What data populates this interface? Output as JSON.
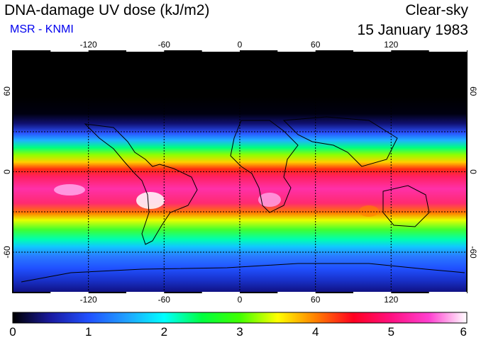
{
  "header": {
    "title": "DNA-damage UV dose (kJ/m2)",
    "source": "MSR - KNMI",
    "condition": "Clear-sky",
    "date": "15 January 1983"
  },
  "map": {
    "projection": "equirectangular",
    "lon_range": [
      -180,
      180
    ],
    "lat_range": [
      -90,
      90
    ],
    "lon_ticks": [
      "-120",
      "-60",
      "0",
      "60",
      "120"
    ],
    "lat_ticks": [
      "60",
      "0",
      "-60"
    ],
    "gridline_style": "dotted",
    "colors": {
      "night": "#000000",
      "grid": "#000000",
      "coast": "#000000"
    }
  },
  "colorbar": {
    "tick_labels": [
      "0",
      "1",
      "2",
      "3",
      "4",
      "5",
      "6"
    ],
    "min": 0,
    "max": 6,
    "stops": [
      {
        "value": 0,
        "color": "#000000"
      },
      {
        "value": 0.5,
        "color": "#1a1aa0"
      },
      {
        "value": 1,
        "color": "#2050ff"
      },
      {
        "value": 1.5,
        "color": "#20a0ff"
      },
      {
        "value": 2,
        "color": "#00ffff"
      },
      {
        "value": 2.5,
        "color": "#00ff40"
      },
      {
        "value": 3,
        "color": "#40ff00"
      },
      {
        "value": 3.5,
        "color": "#ffff00"
      },
      {
        "value": 4,
        "color": "#ff8000"
      },
      {
        "value": 4.5,
        "color": "#ff0020"
      },
      {
        "value": 5,
        "color": "#ff1080"
      },
      {
        "value": 5.5,
        "color": "#ff40d0"
      },
      {
        "value": 6,
        "color": "#ffffff"
      }
    ]
  }
}
